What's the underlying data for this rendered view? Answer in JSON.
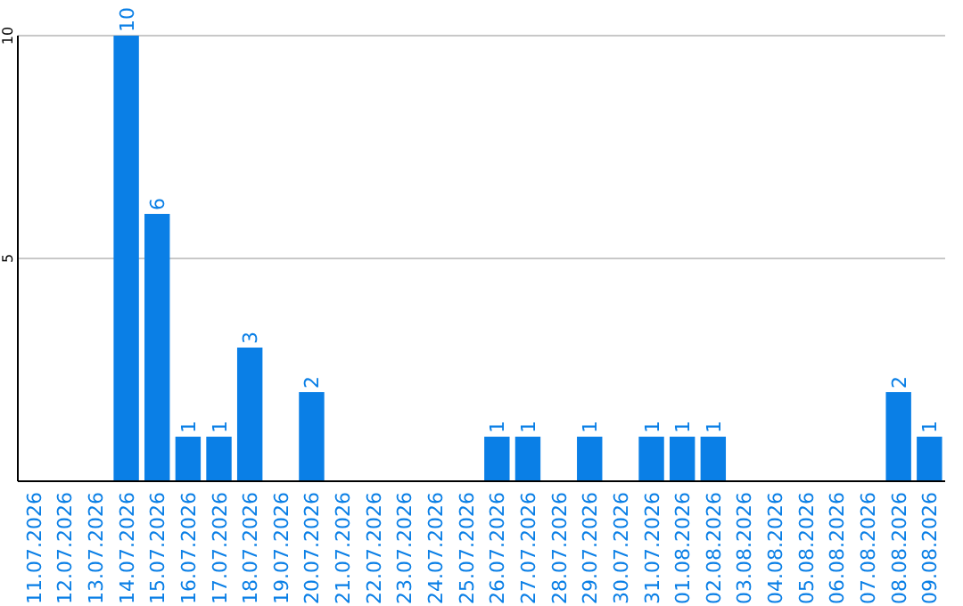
{
  "chart_data": {
    "type": "bar",
    "categories": [
      "11.07.2026",
      "12.07.2026",
      "13.07.2026",
      "14.07.2026",
      "15.07.2026",
      "16.07.2026",
      "17.07.2026",
      "18.07.2026",
      "19.07.2026",
      "20.07.2026",
      "21.07.2026",
      "22.07.2026",
      "23.07.2026",
      "24.07.2026",
      "25.07.2026",
      "26.07.2026",
      "27.07.2026",
      "28.07.2026",
      "29.07.2026",
      "30.07.2026",
      "31.07.2026",
      "01.08.2026",
      "02.08.2026",
      "03.08.2026",
      "04.08.2026",
      "05.08.2026",
      "06.08.2026",
      "07.08.2026",
      "08.08.2026",
      "09.08.2026"
    ],
    "values": [
      0,
      0,
      0,
      10,
      6,
      1,
      1,
      3,
      0,
      2,
      0,
      0,
      0,
      0,
      0,
      1,
      1,
      0,
      1,
      0,
      1,
      1,
      1,
      0,
      0,
      0,
      0,
      0,
      2,
      1
    ],
    "value_labels": [
      null,
      null,
      null,
      "10",
      "6",
      "1",
      "1",
      "3",
      null,
      "2",
      null,
      null,
      null,
      null,
      null,
      "1",
      "1",
      null,
      "1",
      null,
      "1",
      "1",
      "1",
      null,
      null,
      null,
      null,
      null,
      "2",
      "1"
    ],
    "color": "#0a7fe6",
    "ylim": [
      0,
      10
    ],
    "yticks": [
      5,
      10
    ],
    "grid": "y"
  }
}
